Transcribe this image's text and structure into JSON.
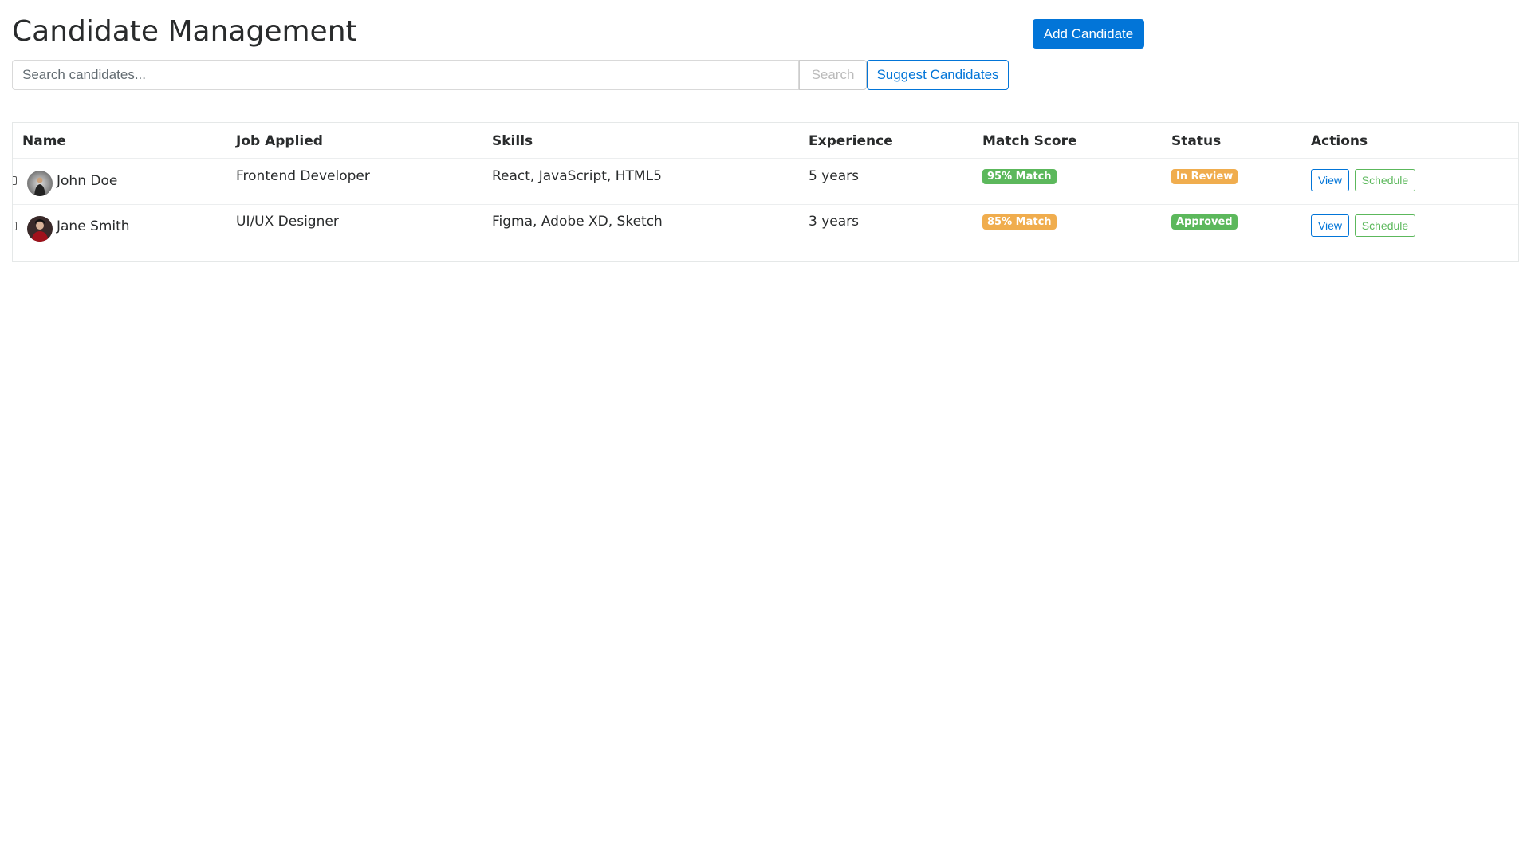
{
  "header": {
    "title": "Candidate Management",
    "add_label": "Add Candidate"
  },
  "search": {
    "placeholder": "Search candidates...",
    "value": "",
    "search_label": "Search",
    "suggest_label": "Suggest Candidates"
  },
  "table": {
    "columns": [
      "Name",
      "Job Applied",
      "Skills",
      "Experience",
      "Match Score",
      "Status",
      "Actions"
    ],
    "rows": [
      {
        "name": "John Doe",
        "job": "Frontend Developer",
        "skills": "React, JavaScript, HTML5",
        "experience": "5 years",
        "match": "95% Match",
        "match_color": "#5cb85c",
        "status": "In Review",
        "status_color": "#f0ad4e",
        "view": "View",
        "schedule": "Schedule"
      },
      {
        "name": "Jane Smith",
        "job": "UI/UX Designer",
        "skills": "Figma, Adobe XD, Sketch",
        "experience": "3 years",
        "match": "85% Match",
        "match_color": "#f0ad4e",
        "status": "Approved",
        "status_color": "#5cb85c",
        "view": "View",
        "schedule": "Schedule"
      }
    ]
  },
  "colors": {
    "primary": "#0275d8",
    "success": "#5cb85c",
    "warning": "#f0ad4e"
  }
}
